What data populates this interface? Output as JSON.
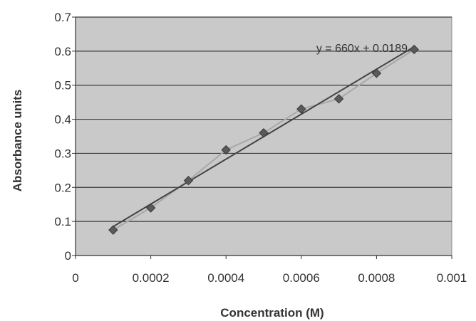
{
  "chart_data": {
    "type": "scatter",
    "title": "",
    "xlabel": "Concentration (M)",
    "ylabel": "Absorbance units",
    "xlim": [
      0,
      0.001
    ],
    "ylim": [
      0,
      0.7
    ],
    "x_ticks": [
      "0",
      "0.0002",
      "0.0004",
      "0.0006",
      "0.0008",
      "0.001"
    ],
    "y_ticks": [
      "0",
      "0.1",
      "0.2",
      "0.3",
      "0.4",
      "0.5",
      "0.6",
      "0.7"
    ],
    "grid": true,
    "background_color": "#c9c9c9",
    "series": [
      {
        "marker": "diamond",
        "color": "#5a5a5a",
        "line_color": "#a8a8a8",
        "x": [
          0.0001,
          0.0002,
          0.0003,
          0.0004,
          0.0005,
          0.0006,
          0.0007,
          0.0008,
          0.0009
        ],
        "y": [
          0.075,
          0.14,
          0.22,
          0.31,
          0.36,
          0.43,
          0.46,
          0.535,
          0.605
        ]
      }
    ],
    "trendline": {
      "slope": 660,
      "intercept": 0.0189,
      "x_range": [
        0.0001,
        0.0009
      ],
      "color": "#444444",
      "label": "y = 660x + 0.0189"
    }
  }
}
